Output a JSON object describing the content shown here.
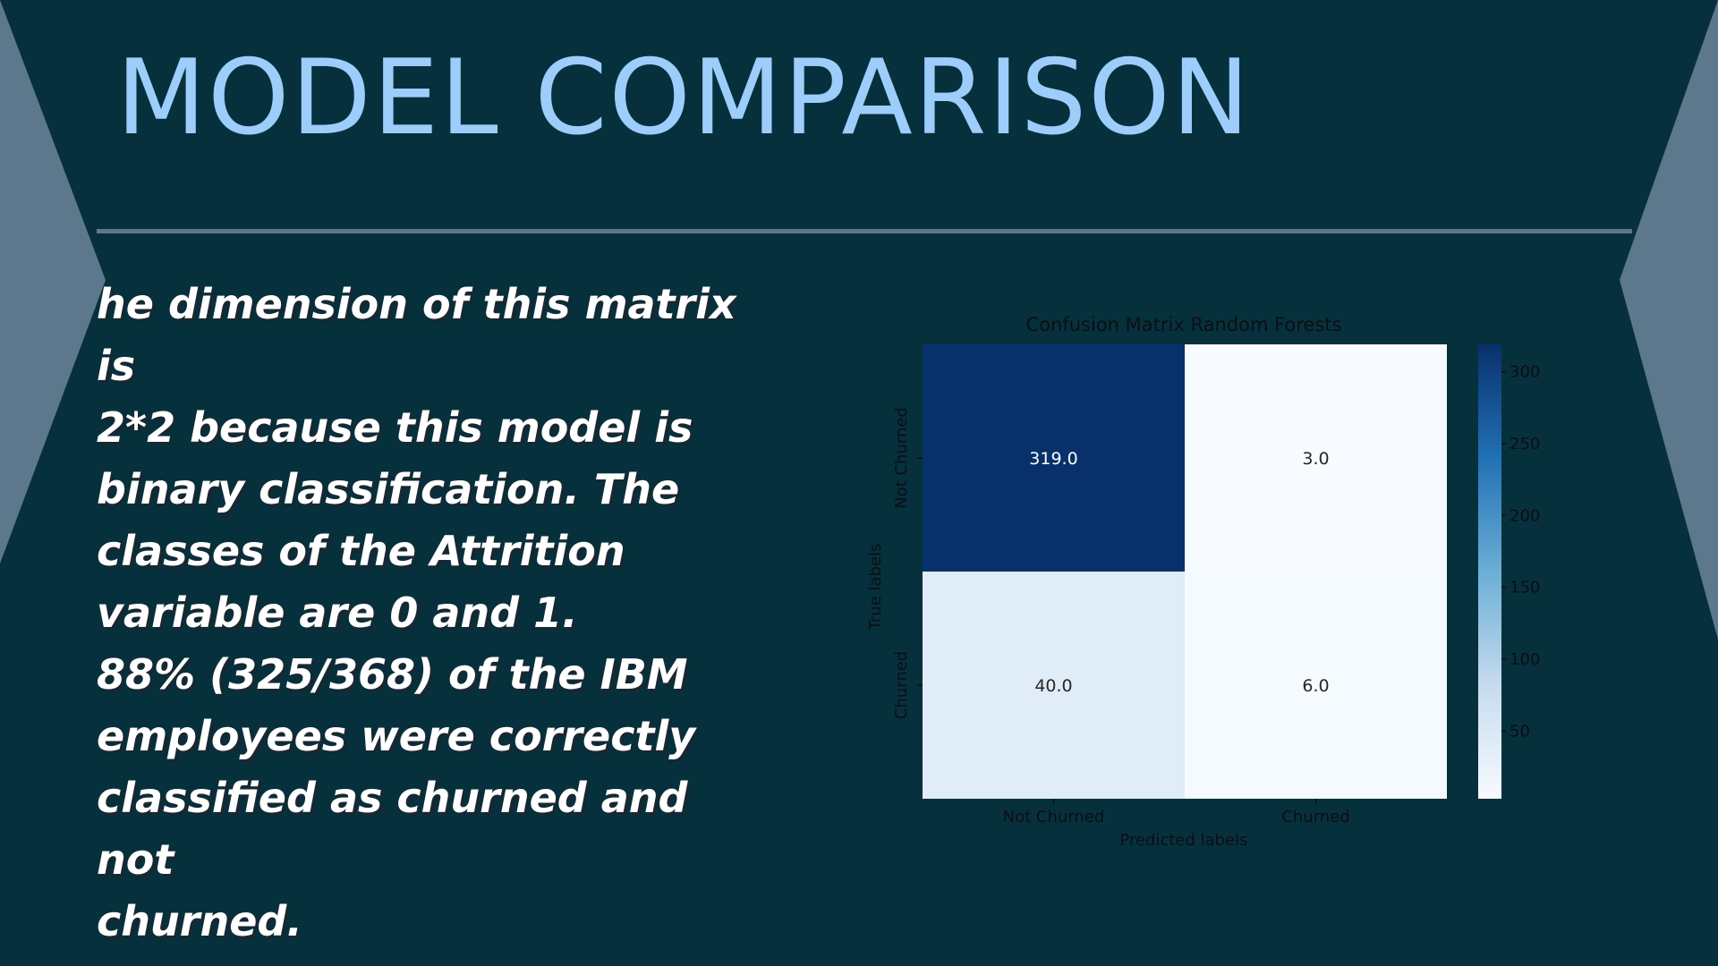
{
  "slide": {
    "title": "MODEL COMPARISON",
    "body_lines": [
      "he dimension of this matrix is",
      "2*2 because this model is",
      "binary classification. The",
      "classes of the Attrition",
      "variable are 0 and 1.",
      "88% (325/368) of the IBM",
      "employees were correctly",
      "classified as churned and not",
      "churned."
    ]
  },
  "colors": {
    "background": "#07303d",
    "title": "#9dcdfb",
    "accent": "#5d778c",
    "body_text": "#ffffff",
    "colormap": "Blues"
  },
  "chart_data": {
    "type": "heatmap",
    "title": "Confusion Matrix Random Forests",
    "xlabel": "Predicted labels",
    "ylabel": "True labels",
    "x_categories": [
      "Not Churned",
      "Churned"
    ],
    "y_categories": [
      "Not Churned",
      "Churned"
    ],
    "values": [
      [
        319,
        3
      ],
      [
        40,
        6
      ]
    ],
    "cell_labels": [
      [
        "319.0",
        "3.0"
      ],
      [
        "40.0",
        "6.0"
      ]
    ],
    "colorbar": {
      "range": [
        3,
        319
      ],
      "ticks": [
        50,
        100,
        150,
        200,
        250,
        300
      ],
      "tick_labels": [
        "50",
        "100",
        "150",
        "200",
        "250",
        "300"
      ]
    },
    "colormap": "Blues"
  }
}
